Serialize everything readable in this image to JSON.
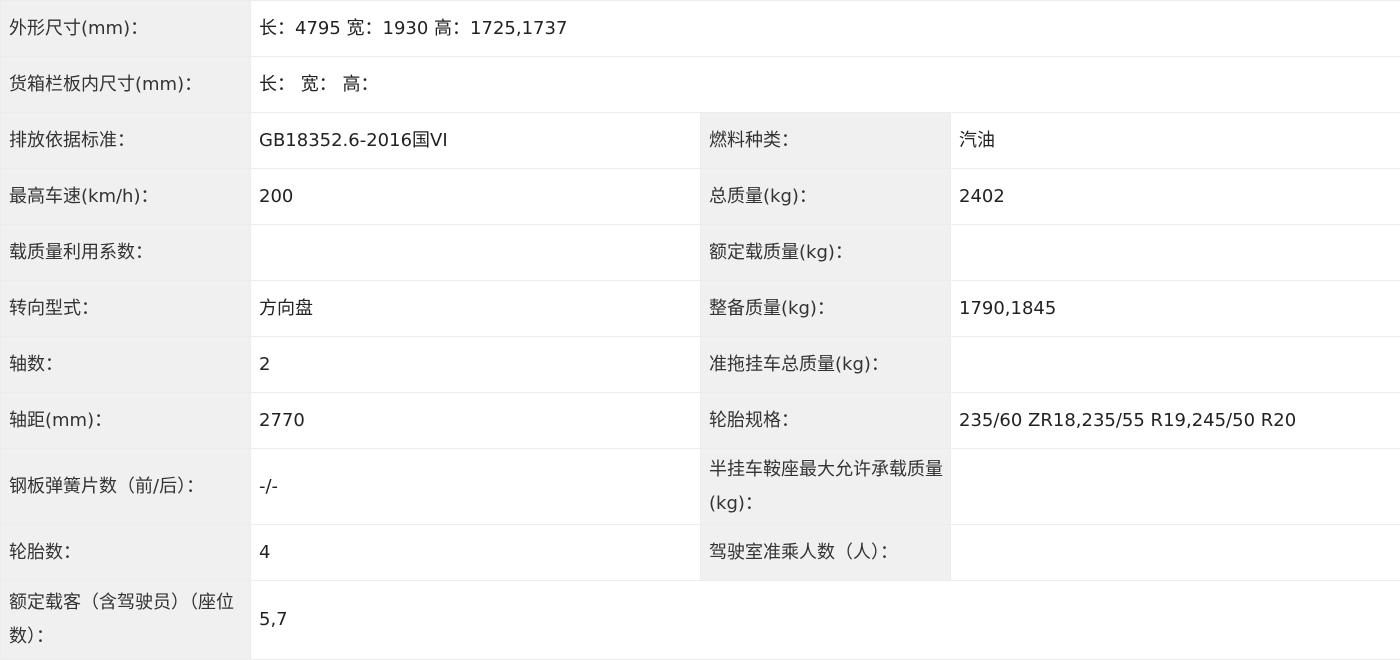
{
  "rows": [
    {
      "l1": "外形尺寸(mm)：",
      "v1": "长：4795 宽：1930 高：1725,1737"
    },
    {
      "l1": "货箱栏板内尺寸(mm)：",
      "v1": "长：  宽：  高："
    },
    {
      "l1": "排放依据标准：",
      "v1": "GB18352.6-2016国VI",
      "l2": "燃料种类：",
      "v2": "汽油"
    },
    {
      "l1": "最高车速(km/h)：",
      "v1": "200",
      "l2": "总质量(kg)：",
      "v2": "2402"
    },
    {
      "l1": "载质量利用系数：",
      "v1": "",
      "l2": "额定载质量(kg)：",
      "v2": ""
    },
    {
      "l1": "转向型式：",
      "v1": "方向盘",
      "l2": "整备质量(kg)：",
      "v2": "1790,1845"
    },
    {
      "l1": "轴数：",
      "v1": "2",
      "l2": "准拖挂车总质量(kg)：",
      "v2": ""
    },
    {
      "l1": "轴距(mm)：",
      "v1": "2770",
      "l2": "轮胎规格：",
      "v2": "235/60 ZR18,235/55 R19,245/50 R20"
    },
    {
      "l1": "钢板弹簧片数（前/后）：",
      "v1": "-/-",
      "l2": "半挂车鞍座最大允许承载质量(kg)：",
      "v2": ""
    },
    {
      "l1": "轮胎数：",
      "v1": "4",
      "l2": "驾驶室准乘人数（人）：",
      "v2": ""
    },
    {
      "l1": "额定载客（含驾驶员）（座位数）：",
      "v1": "5,7"
    }
  ]
}
